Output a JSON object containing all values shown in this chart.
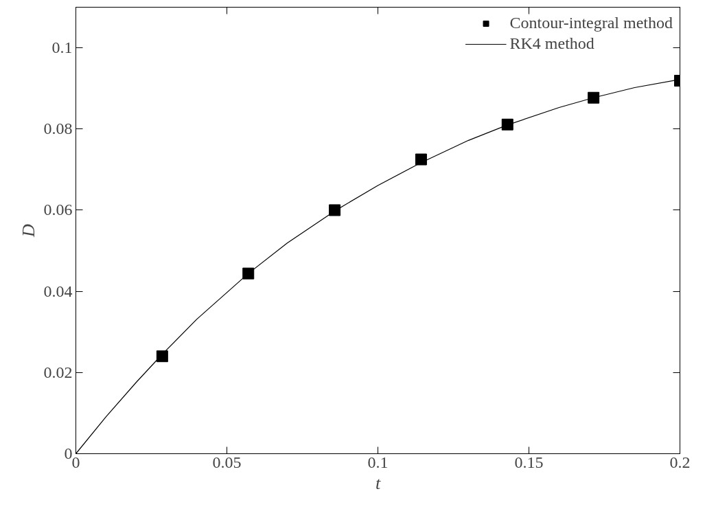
{
  "chart_data": {
    "type": "scatter",
    "xlabel": "t",
    "ylabel": "D",
    "xlim": [
      0,
      0.2
    ],
    "ylim": [
      0,
      0.11
    ],
    "xticks": [
      0,
      0.05,
      0.1,
      0.15,
      0.2
    ],
    "yticks": [
      0,
      0.02,
      0.04,
      0.06,
      0.08,
      0.1
    ],
    "grid": false,
    "legend": "top right",
    "series": [
      {
        "name": "Contour-integral method",
        "marker": "square",
        "color": "#000000",
        "x": [
          0.0286,
          0.0571,
          0.0857,
          0.1143,
          0.1429,
          0.1714,
          0.2
        ],
        "values": [
          0.024,
          0.0444,
          0.06,
          0.0725,
          0.0811,
          0.0877,
          0.0919
        ]
      },
      {
        "name": "RK4 method",
        "type": "line",
        "line_style": "solid",
        "color": "#000000",
        "x": [
          0,
          0.01,
          0.02,
          0.0286,
          0.04,
          0.0571,
          0.07,
          0.0857,
          0.1,
          0.1143,
          0.13,
          0.1429,
          0.16,
          0.1714,
          0.185,
          0.2
        ],
        "values": [
          0,
          0.0091,
          0.0176,
          0.0245,
          0.0331,
          0.0444,
          0.0519,
          0.0598,
          0.0661,
          0.0717,
          0.0772,
          0.081,
          0.0853,
          0.0877,
          0.0902,
          0.0922
        ]
      }
    ]
  }
}
